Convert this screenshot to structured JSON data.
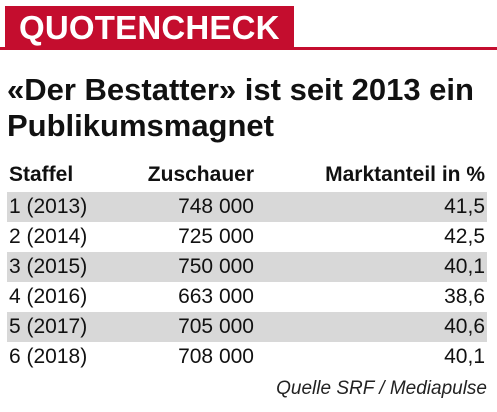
{
  "header": {
    "kicker": "QUOTENCHECK"
  },
  "headline": "«Der Bestatter» ist seit 2013 ein Publikumsmagnet",
  "table": {
    "columns": [
      "Staffel",
      "Zuschauer",
      "Marktanteil in %"
    ],
    "rows": [
      {
        "staffel": "1  (2013)",
        "zuschauer": "748 000",
        "marktanteil": "41,5"
      },
      {
        "staffel": "2  (2014)",
        "zuschauer": "725 000",
        "marktanteil": "42,5"
      },
      {
        "staffel": "3  (2015)",
        "zuschauer": "750 000",
        "marktanteil": "40,1"
      },
      {
        "staffel": "4  (2016)",
        "zuschauer": "663 000",
        "marktanteil": "38,6"
      },
      {
        "staffel": "5  (2017)",
        "zuschauer": "705 000",
        "marktanteil": "40,6"
      },
      {
        "staffel": "6  (2018)",
        "zuschauer": "708 000",
        "marktanteil": "40,1"
      }
    ]
  },
  "source": "Quelle SRF / Mediapulse",
  "colors": {
    "accent": "#c40d2e",
    "row_stripe": "#d8d8d8"
  }
}
